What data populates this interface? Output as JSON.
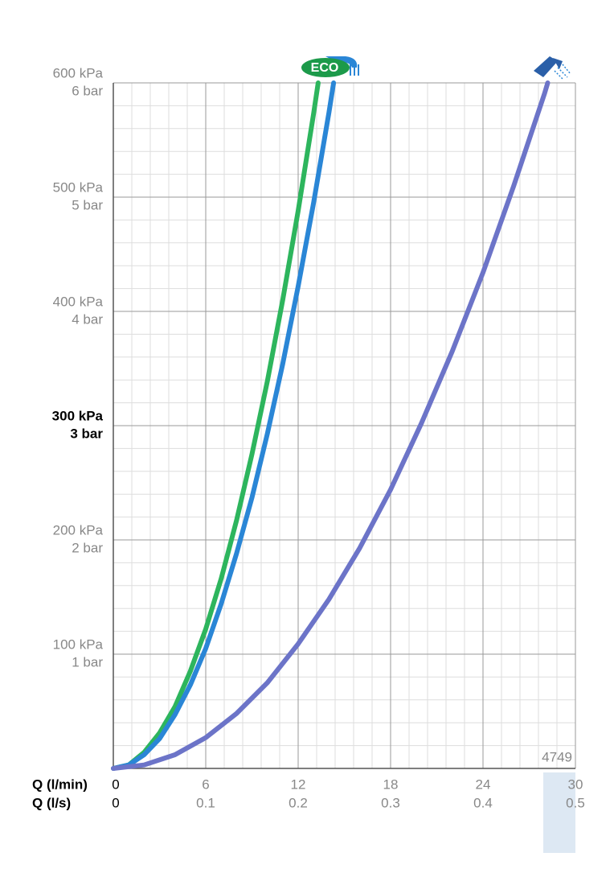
{
  "chart_data": {
    "type": "line",
    "xlim": [
      0,
      30
    ],
    "ylim": [
      0,
      600
    ],
    "x_label": "Q (l/min)",
    "x2_label": "Q (l/s)",
    "xticks": [
      0,
      6,
      12,
      18,
      24,
      30
    ],
    "x2ticks": [
      {
        "value": 0,
        "label": "0"
      },
      {
        "value": 6,
        "label": "0.1"
      },
      {
        "value": 12,
        "label": "0.2"
      },
      {
        "value": 18,
        "label": "0.3"
      },
      {
        "value": 24,
        "label": "0.4"
      },
      {
        "value": 30,
        "label": "0.5"
      }
    ],
    "yticks": [
      {
        "value": 100,
        "label": "100 kPa"
      },
      {
        "value": 200,
        "label": "200 kPa"
      },
      {
        "value": 300,
        "label": "300 kPa"
      },
      {
        "value": 400,
        "label": "400 kPa"
      },
      {
        "value": 500,
        "label": "500 kPa"
      },
      {
        "value": 600,
        "label": "600 kPa"
      }
    ],
    "y2ticks": [
      {
        "value": 100,
        "label": "1 bar"
      },
      {
        "value": 200,
        "label": "2 bar"
      },
      {
        "value": 300,
        "label": "3 bar"
      },
      {
        "value": 400,
        "label": "4 bar"
      },
      {
        "value": 500,
        "label": "5 bar"
      },
      {
        "value": 600,
        "label": "6 bar"
      }
    ],
    "bold_ytick": 300,
    "grid": true,
    "minor_divisions": 5,
    "annotation": "4749",
    "icon_label": "ECO",
    "series": [
      {
        "color": "#2db55d",
        "x": [
          0,
          1,
          2,
          3,
          4,
          5,
          6,
          7,
          8,
          9,
          10,
          11,
          12,
          13,
          13.3
        ],
        "values": [
          0,
          3,
          14,
          31,
          54,
          85,
          122,
          166,
          217,
          275,
          339,
          410,
          488,
          573,
          600
        ]
      },
      {
        "color": "#2a86d6",
        "x": [
          0,
          1,
          2,
          3,
          4,
          5,
          6,
          7,
          8,
          9,
          10,
          11,
          12,
          13,
          14,
          14.3
        ],
        "values": [
          0,
          3,
          12,
          26,
          47,
          73,
          105,
          144,
          188,
          237,
          293,
          354,
          422,
          495,
          574,
          600
        ]
      },
      {
        "color": "#6c74c8",
        "x": [
          0,
          2,
          4,
          6,
          8,
          10,
          12,
          14,
          16,
          18,
          20,
          22,
          24,
          26,
          28,
          28.2
        ],
        "values": [
          0,
          3,
          12,
          27,
          48,
          75,
          109,
          148,
          193,
          244,
          302,
          365,
          434,
          510,
          591,
          600
        ]
      }
    ]
  }
}
